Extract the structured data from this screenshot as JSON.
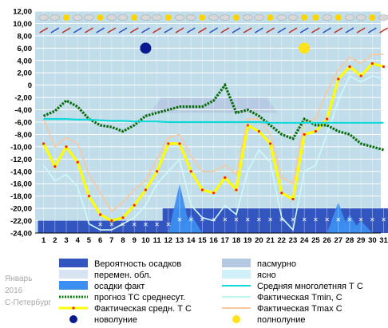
{
  "side_text": {
    "month": "Январь",
    "year": "2016",
    "city": "С-Петербург"
  },
  "chart_data": {
    "type": "line",
    "x": [
      1,
      2,
      3,
      4,
      5,
      6,
      7,
      8,
      9,
      10,
      11,
      12,
      13,
      14,
      15,
      16,
      17,
      18,
      19,
      20,
      21,
      22,
      23,
      24,
      25,
      26,
      27,
      28,
      29,
      30,
      31
    ],
    "ylim": [
      -24,
      12
    ],
    "yticks": [
      "12,00",
      "10,00",
      "8,00",
      "6,00",
      "4,00",
      "2,00",
      "0",
      "-2,00",
      "-4,00",
      "-6,00",
      "-8,00",
      "-10,00",
      "-12,00",
      "-14,00",
      "-16,00",
      "-18,00",
      "-20,00",
      "-22,00",
      "-24,00"
    ],
    "grid": true,
    "series": [
      {
        "name": "Фактическая средн. Т С",
        "color": "#ffff00",
        "values": [
          -9.5,
          -13.2,
          -10.0,
          -12.5,
          -18.0,
          -21.0,
          -22.0,
          -21.5,
          -19.5,
          -17.0,
          -14.0,
          -9.5,
          -9.5,
          -14.0,
          -17.0,
          -17.5,
          -15.0,
          -17.0,
          -6.5,
          -7.5,
          -9.5,
          -17.5,
          -18.5,
          -8.0,
          -7.5,
          -5.5,
          1.0,
          3.0,
          1.5,
          3.5,
          3.0
        ]
      },
      {
        "name": "Фактическая Tmax C",
        "color": "#f8c8a0",
        "values": [
          -5.5,
          -10.0,
          -8.5,
          -9.5,
          -14.5,
          -17.5,
          -20.5,
          -19.0,
          -17.0,
          -15.5,
          -12.0,
          -8.5,
          -8.0,
          -11.5,
          -14.0,
          -14.0,
          -13.0,
          -14.5,
          -5.5,
          -5.5,
          -8.0,
          -15.0,
          -16.0,
          -6.0,
          -5.5,
          -1.0,
          2.5,
          4.5,
          3.5,
          5.0,
          5.0
        ]
      },
      {
        "name": "Фактическая Tmin, С",
        "color": "#cffafa",
        "values": [
          -13.0,
          -15.5,
          -14.5,
          -16.5,
          -22.5,
          -23.5,
          -23.5,
          -22.5,
          -21.5,
          -19.5,
          -16.0,
          -14.0,
          -12.0,
          -19.5,
          -21.5,
          -22.0,
          -19.5,
          -21.0,
          -14.0,
          -10.5,
          -12.5,
          -21.5,
          -23.5,
          -14.0,
          -13.0,
          -8.0,
          -2.5,
          1.5,
          0.5,
          1.5,
          1.0
        ]
      },
      {
        "name": "прогноз ТС среднесут.",
        "color": "#0a7a0a",
        "values": [
          -5.0,
          -4.2,
          -2.5,
          -3.5,
          -5.5,
          -6.5,
          -6.8,
          -7.5,
          -6.5,
          -5.0,
          -4.5,
          -4.0,
          -3.5,
          -3.5,
          -3.5,
          -2.5,
          0.0,
          -4.5,
          -4.0,
          -5.0,
          -6.5,
          -8.0,
          -8.7,
          -5.5,
          -6.5,
          -6.5,
          -7.5,
          -8.0,
          -9.5,
          -10.0,
          -10.5
        ]
      },
      {
        "name": "Средняя многолетняя Т С",
        "color": "#10d8d8",
        "values": [
          -5.5,
          -5.5,
          -5.5,
          -5.6,
          -5.6,
          -5.7,
          -5.8,
          -5.8,
          -5.9,
          -5.9,
          -5.9,
          -6.0,
          -6.0,
          -6.0,
          -6.0,
          -6.0,
          -6.0,
          -6.0,
          -6.0,
          -6.0,
          -6.1,
          -6.1,
          -6.1,
          -6.1,
          -6.1,
          -6.1,
          -6.1,
          -6.1,
          -6.1,
          -6.1,
          -6.1
        ]
      }
    ],
    "precip_prob": [
      2,
      2,
      2,
      2,
      2,
      2,
      2,
      2,
      2,
      2,
      2,
      4,
      4,
      4,
      4,
      4,
      4,
      4,
      4,
      4,
      4,
      4,
      4,
      4,
      4,
      4,
      4,
      4,
      4,
      4,
      4
    ],
    "precip_fact": [
      0,
      0,
      0,
      0,
      0,
      0,
      0,
      0,
      0,
      0,
      0,
      0,
      8,
      3,
      0,
      0,
      0,
      0,
      0,
      0,
      0,
      0,
      0,
      0,
      0,
      0,
      5,
      3,
      2,
      0,
      0
    ],
    "overcast_band": [
      11,
      21,
      -4.5,
      12
    ],
    "moon": {
      "new_day": 10,
      "full_day": 24
    },
    "legend": [
      "Вероятность осадков",
      "пасмурно",
      "перемен. обл.",
      "ясно",
      "осадки факт",
      "Средняя многолетняя Т С",
      "прогноз ТС среднесут.",
      "Фактическая Tmin, С",
      "Фактическая средн. Т С",
      "Фактическая Tmax C",
      "новолуние",
      "полнолуние"
    ],
    "colors": {
      "plot_bg": "#c0dde9",
      "grid": "#ffffff",
      "overcast": "#b4c8e2",
      "precip_prob": "#3355c0",
      "precip_fact": "#3c8ef0",
      "new_moon": "#0b1a8c",
      "full_moon": "#ffe21a"
    }
  }
}
